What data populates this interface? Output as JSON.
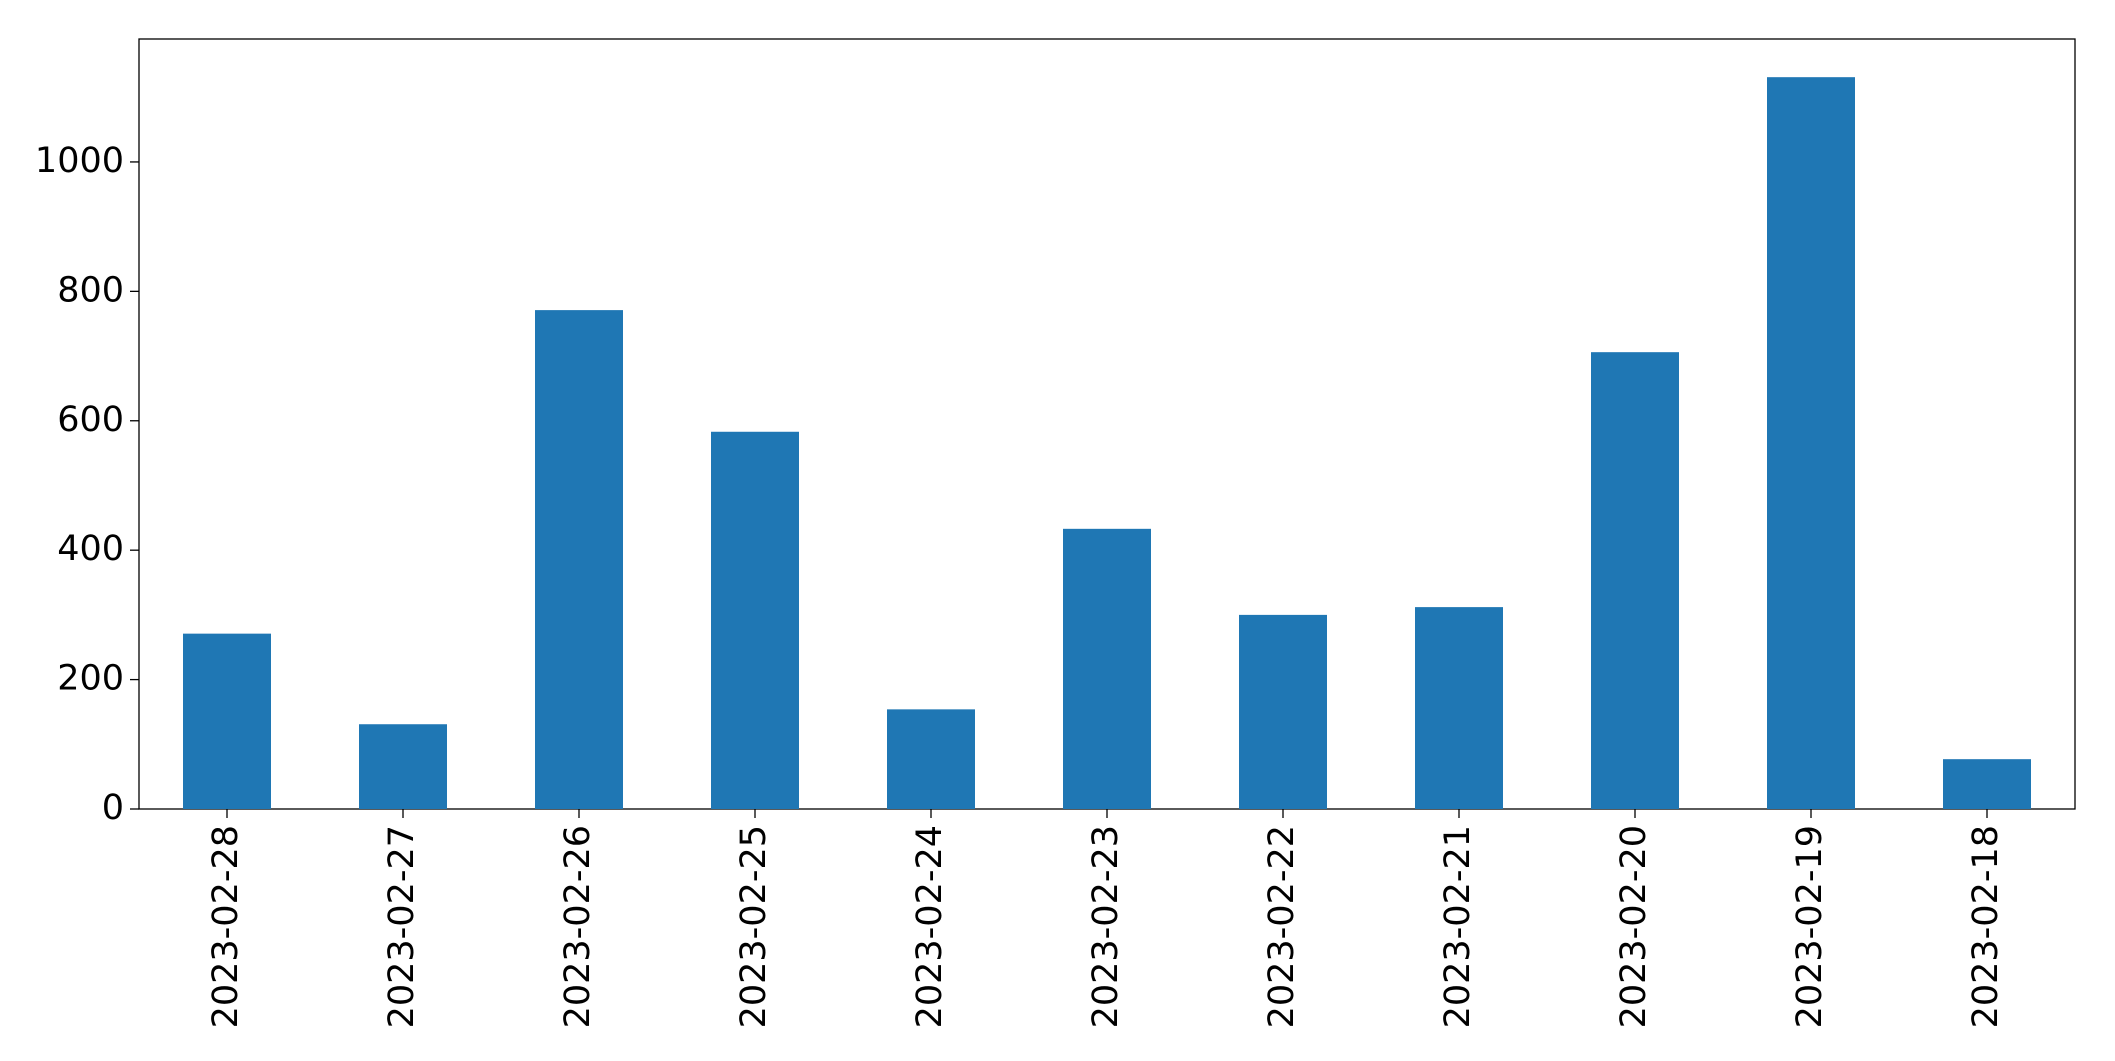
{
  "chart_data": {
    "type": "bar",
    "categories": [
      "2023-02-28",
      "2023-02-27",
      "2023-02-26",
      "2023-02-25",
      "2023-02-24",
      "2023-02-23",
      "2023-02-22",
      "2023-02-21",
      "2023-02-20",
      "2023-02-19",
      "2023-02-18"
    ],
    "values": [
      271,
      131,
      771,
      583,
      154,
      433,
      300,
      312,
      706,
      1131,
      77
    ],
    "color": "#1f77b4",
    "ylim": [
      0,
      1190
    ],
    "yticks": [
      0,
      200,
      400,
      600,
      800,
      1000
    ],
    "grid": false
  }
}
